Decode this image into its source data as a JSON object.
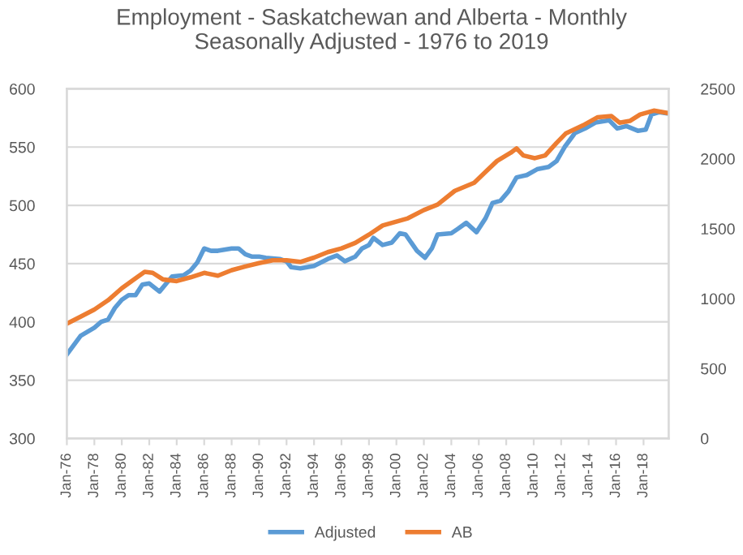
{
  "chart_data": {
    "type": "line",
    "title": "Employment - Saskatchewan and Alberta - Monthly\nSeasonally Adjusted - 1976 to 2019",
    "series": [
      {
        "name": "Adjusted",
        "color": "#5b9bd5",
        "axis": "y",
        "x": [
          "1976-01",
          "1977-01",
          "1978-01",
          "1978-07",
          "1979-01",
          "1979-07",
          "1980-01",
          "1980-07",
          "1981-01",
          "1981-07",
          "1982-01",
          "1982-10",
          "1983-04",
          "1983-09",
          "1984-07",
          "1985-01",
          "1985-07",
          "1986-01",
          "1986-07",
          "1987-01",
          "1988-01",
          "1988-07",
          "1989-01",
          "1989-07",
          "1990-01",
          "1990-07",
          "1991-07",
          "1992-01",
          "1992-05",
          "1993-01",
          "1994-01",
          "1995-01",
          "1995-09",
          "1996-04",
          "1997-01",
          "1997-07",
          "1998-01",
          "1998-05",
          "1999-01",
          "1999-09",
          "2000-04",
          "2000-09",
          "2001-07",
          "2002-02",
          "2002-08",
          "2003-01",
          "2004-01",
          "2004-07",
          "2005-02",
          "2005-11",
          "2006-07",
          "2007-01",
          "2007-08",
          "2008-03",
          "2008-10",
          "2009-07",
          "2010-04",
          "2011-02",
          "2011-09",
          "2012-04",
          "2013-01",
          "2013-10",
          "2014-07",
          "2015-07",
          "2016-02",
          "2016-10",
          "2017-08",
          "2018-03",
          "2018-08",
          "2019-03",
          "2019-09"
        ],
        "values": [
          372,
          388,
          395,
          400,
          402,
          412,
          419,
          423,
          423,
          432,
          433,
          426,
          433,
          439,
          440,
          444,
          451,
          463,
          461,
          461,
          463,
          463,
          458,
          456,
          456,
          455,
          454,
          452,
          447,
          446,
          448,
          454,
          457,
          452,
          456,
          463,
          466,
          472,
          466,
          468,
          476,
          475,
          461,
          455,
          463,
          475,
          476,
          480,
          485,
          477,
          489,
          502,
          504,
          512,
          524,
          526,
          531,
          533,
          538,
          550,
          562,
          566,
          571,
          573,
          566,
          568,
          564,
          565,
          578,
          580,
          579
        ]
      },
      {
        "name": "AB",
        "color": "#ed7d31",
        "axis": "y2",
        "x": [
          "1976-01",
          "1977-01",
          "1978-01",
          "1979-01",
          "1980-01",
          "1981-01",
          "1981-09",
          "1982-04",
          "1983-01",
          "1984-01",
          "1985-01",
          "1986-01",
          "1987-01",
          "1988-01",
          "1989-01",
          "1990-01",
          "1991-01",
          "1992-01",
          "1993-01",
          "1994-01",
          "1995-01",
          "1996-01",
          "1997-01",
          "1998-01",
          "1999-01",
          "2000-11",
          "2002-01",
          "2003-01",
          "2004-04",
          "2005-09",
          "2006-07",
          "2007-05",
          "2008-05",
          "2008-10",
          "2009-04",
          "2010-02",
          "2010-11",
          "2011-09",
          "2012-05",
          "2013-08",
          "2014-09",
          "2015-09",
          "2016-04",
          "2017-01",
          "2017-10",
          "2018-10",
          "2019-09"
        ],
        "values": [
          820,
          871,
          922,
          988,
          1074,
          1145,
          1191,
          1184,
          1137,
          1125,
          1152,
          1184,
          1164,
          1203,
          1230,
          1254,
          1274,
          1274,
          1262,
          1293,
          1332,
          1359,
          1398,
          1457,
          1523,
          1574,
          1633,
          1672,
          1770,
          1828,
          1906,
          1984,
          2043,
          2074,
          2023,
          2004,
          2023,
          2113,
          2180,
          2238,
          2297,
          2305,
          2258,
          2270,
          2316,
          2344,
          2328
        ]
      }
    ],
    "xlim": [
      "1976-01",
      "2019-11"
    ],
    "xticks": [
      {
        "value": "1976-01",
        "label": "Jan-76"
      },
      {
        "value": "1978-01",
        "label": "Jan-78"
      },
      {
        "value": "1980-01",
        "label": "Jan-80"
      },
      {
        "value": "1982-01",
        "label": "Jan-82"
      },
      {
        "value": "1984-01",
        "label": "Jan-84"
      },
      {
        "value": "1986-01",
        "label": "Jan-86"
      },
      {
        "value": "1988-01",
        "label": "Jan-88"
      },
      {
        "value": "1990-01",
        "label": "Jan-90"
      },
      {
        "value": "1992-01",
        "label": "Jan-92"
      },
      {
        "value": "1994-01",
        "label": "Jan-94"
      },
      {
        "value": "1996-01",
        "label": "Jan-96"
      },
      {
        "value": "1998-01",
        "label": "Jan-98"
      },
      {
        "value": "2000-01",
        "label": "Jan-00"
      },
      {
        "value": "2002-01",
        "label": "Jan-02"
      },
      {
        "value": "2004-01",
        "label": "Jan-04"
      },
      {
        "value": "2006-01",
        "label": "Jan-06"
      },
      {
        "value": "2008-01",
        "label": "Jan-08"
      },
      {
        "value": "2010-01",
        "label": "Jan-10"
      },
      {
        "value": "2012-01",
        "label": "Jan-12"
      },
      {
        "value": "2014-01",
        "label": "Jan-14"
      },
      {
        "value": "2016-01",
        "label": "Jan-16"
      },
      {
        "value": "2018-01",
        "label": "Jan-18"
      }
    ],
    "ylim": [
      300,
      600
    ],
    "yticks": [
      300,
      350,
      400,
      450,
      500,
      550,
      600
    ],
    "y2lim": [
      0,
      2500
    ],
    "y2ticks": [
      0,
      500,
      1000,
      1500,
      2000,
      2500
    ],
    "grid": "y",
    "legend": "bottom",
    "line_style": "solid",
    "marker": "none"
  }
}
